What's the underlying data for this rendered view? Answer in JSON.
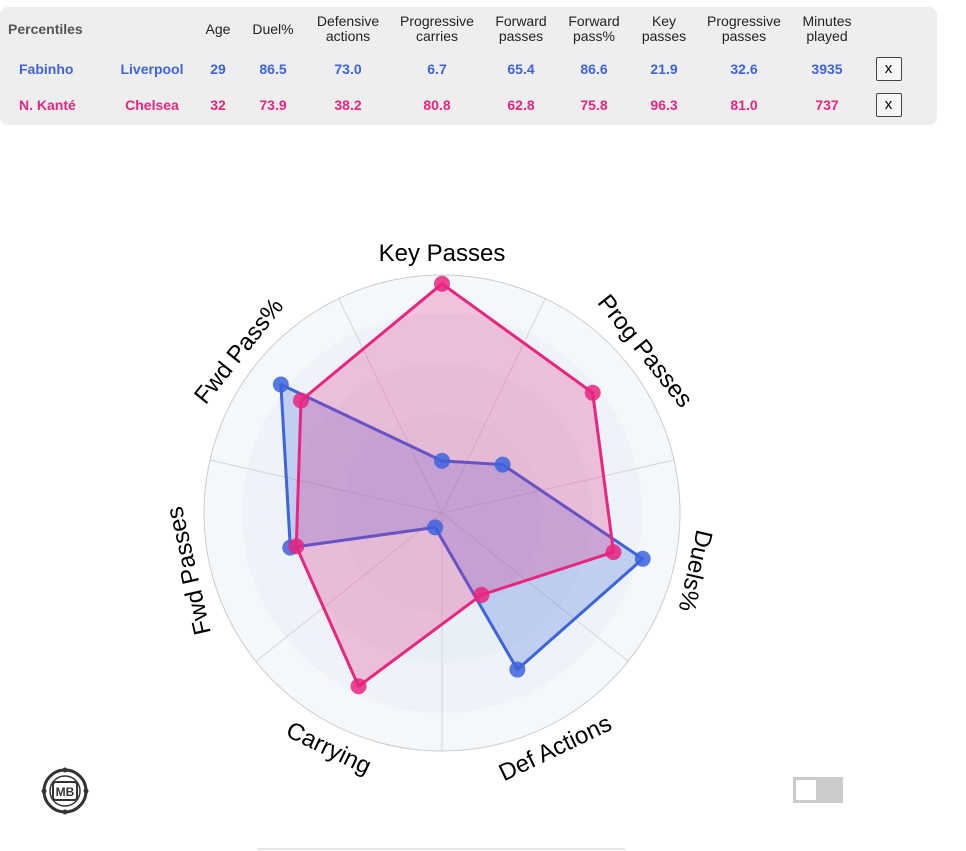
{
  "table": {
    "headers": [
      "Percentiles",
      "",
      "Age",
      "Duel%",
      "Defensive\nactions",
      "Progressive\ncarries",
      "Forward\npasses",
      "Forward\npass%",
      "Key\npasses",
      "Progressive\npasses",
      "Minutes\nplayed"
    ],
    "rows": [
      {
        "player": "Fabinho",
        "team": "Liverpool",
        "age": "29",
        "duel_pct": "86.5",
        "def_actions": "73.0",
        "prog_carries": "6.7",
        "fwd_passes": "65.4",
        "fwd_pass_pct": "86.6",
        "key_passes": "21.9",
        "prog_passes": "32.6",
        "minutes": "3935",
        "remove_label": "x"
      },
      {
        "player": "N. Kanté",
        "team": "Chelsea",
        "age": "32",
        "duel_pct": "73.9",
        "def_actions": "38.2",
        "prog_carries": "80.8",
        "fwd_passes": "62.8",
        "fwd_pass_pct": "75.8",
        "key_passes": "96.3",
        "prog_passes": "81.0",
        "minutes": "737",
        "remove_label": "x"
      }
    ]
  },
  "chart_data": {
    "type": "radar",
    "axes": [
      "Key Passes",
      "Prog Passes",
      "Duels%",
      "Def Actions",
      "Carrying",
      "Fwd Passes",
      "Fwd Pass%"
    ],
    "range": [
      0,
      100
    ],
    "series": [
      {
        "name": "Fabinho",
        "color": "#3d63dd",
        "values": [
          21.9,
          32.6,
          86.5,
          73.0,
          6.7,
          65.4,
          86.6
        ]
      },
      {
        "name": "N. Kanté",
        "color": "#e8257f",
        "values": [
          96.3,
          81.0,
          73.9,
          38.2,
          80.8,
          62.8,
          75.8
        ]
      }
    ]
  },
  "logo": {
    "text": "MB"
  },
  "colors": {
    "fabinho": "#3d63dd",
    "kante": "#e8257f",
    "panel": "#eeeeee"
  }
}
